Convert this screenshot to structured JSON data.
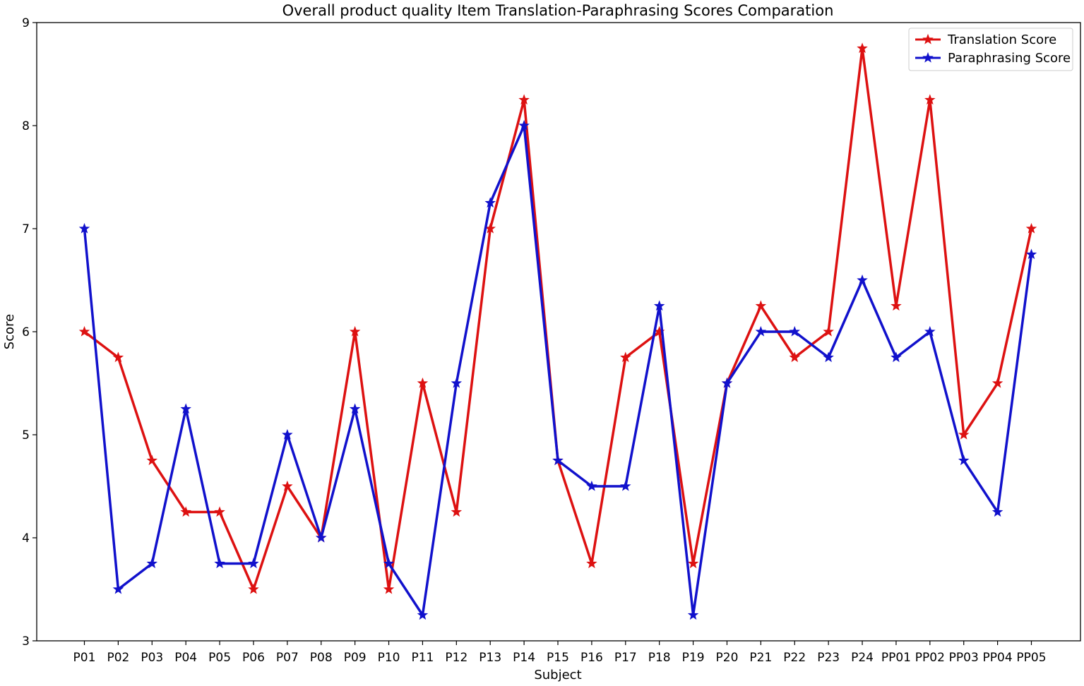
{
  "chart_data": {
    "type": "line",
    "title": "Overall product quality Item Translation-Paraphrasing Scores Comparation",
    "xlabel": "Subject",
    "ylabel": "Score",
    "ylim": [
      3,
      9
    ],
    "yticks": [
      "3",
      "4",
      "5",
      "6",
      "7",
      "8",
      "9"
    ],
    "grid": false,
    "legend_position": "top-right",
    "categories": [
      "P01",
      "P02",
      "P03",
      "P04",
      "P05",
      "P06",
      "P07",
      "P08",
      "P09",
      "P10",
      "P11",
      "P12",
      "P13",
      "P14",
      "P15",
      "P16",
      "P17",
      "P18",
      "P19",
      "P20",
      "P21",
      "P22",
      "P23",
      "P24",
      "PP01",
      "PP02",
      "PP03",
      "PP04",
      "PP05"
    ],
    "series": [
      {
        "name": "Translation Score",
        "color": "#dd1111",
        "marker": "star",
        "values": [
          6.0,
          5.75,
          4.75,
          4.25,
          4.25,
          3.5,
          4.5,
          4.0,
          6.0,
          3.5,
          5.5,
          4.25,
          7.0,
          8.25,
          4.75,
          3.75,
          5.75,
          6.0,
          3.75,
          5.5,
          6.25,
          5.75,
          6.0,
          8.75,
          6.25,
          8.25,
          5.0,
          5.5,
          7.0
        ]
      },
      {
        "name": "Paraphrasing Score",
        "color": "#1111cc",
        "marker": "star",
        "values": [
          7.0,
          3.5,
          3.75,
          5.25,
          3.75,
          3.75,
          5.0,
          4.0,
          5.25,
          3.75,
          3.25,
          5.5,
          7.25,
          8.0,
          4.75,
          4.5,
          4.5,
          6.25,
          3.25,
          5.5,
          6.0,
          6.0,
          5.75,
          6.5,
          5.75,
          6.0,
          4.75,
          4.25,
          6.75
        ]
      }
    ]
  }
}
